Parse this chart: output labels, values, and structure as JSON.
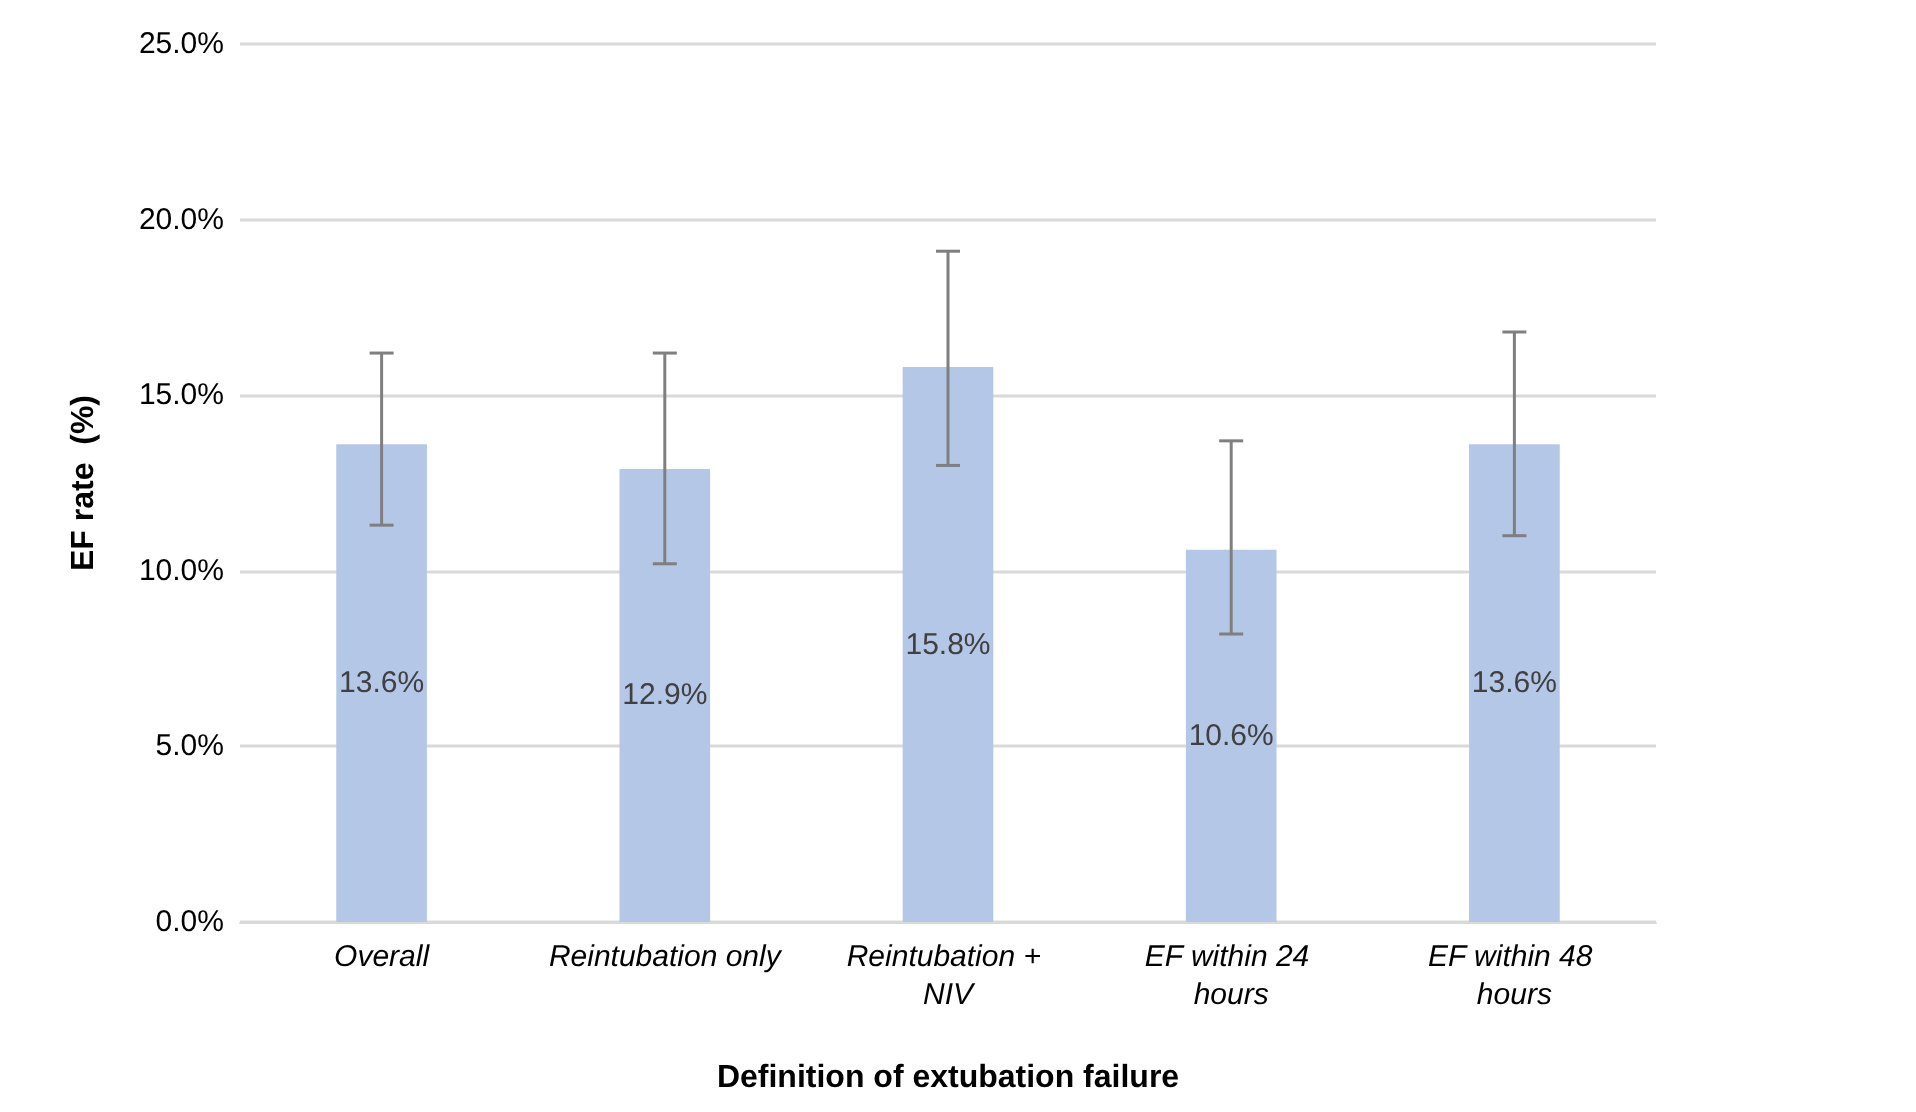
{
  "chart_data": {
    "type": "bar",
    "xlabel": "Definition of extubation failure",
    "ylabel": "EF rate  (%)",
    "categories": [
      "Overall",
      "Reintubation only",
      "Reintubation + NIV",
      "EF within 24 hours",
      "EF within 48 hours"
    ],
    "values": [
      13.6,
      12.9,
      15.8,
      10.6,
      13.6
    ],
    "errors": [
      [
        11.3,
        16.2
      ],
      [
        10.2,
        16.2
      ],
      [
        13.0,
        19.1
      ],
      [
        8.2,
        13.7
      ],
      [
        11.0,
        16.8
      ]
    ],
    "color": "#b4c7e7",
    "value_labels": [
      "13.6%",
      "12.9%",
      "15.8%",
      "10.6%",
      "13.6%"
    ],
    "ylim": [
      0,
      25
    ],
    "yticks": [
      {
        "value": 0,
        "label": "0.0%"
      },
      {
        "value": 5,
        "label": "5.0%"
      },
      {
        "value": 10,
        "label": "10.0%"
      },
      {
        "value": 15,
        "label": "15.0%"
      },
      {
        "value": 20,
        "label": "20.0%"
      },
      {
        "value": 25,
        "label": "25.0%"
      }
    ],
    "grid": "y"
  }
}
